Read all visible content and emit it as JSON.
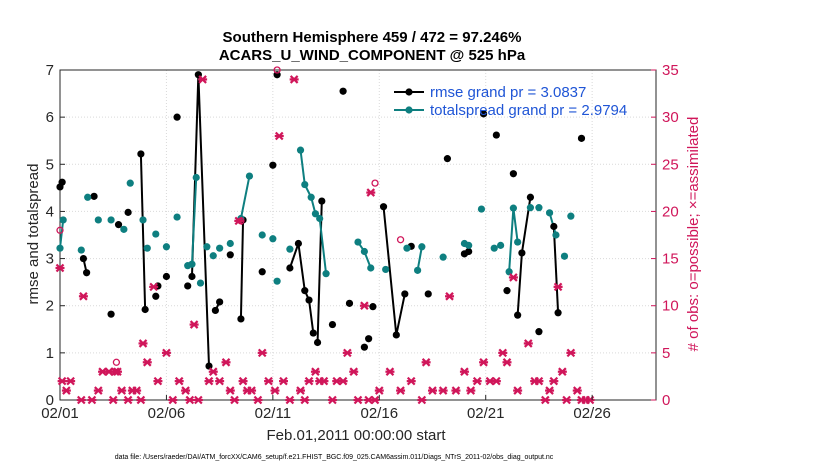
{
  "colors": {
    "rmse": "#000000",
    "totalspread": "#0e7f80",
    "obs": "#d0165a",
    "legend_text": "#1f55d6",
    "axes": "#262626",
    "grid": "#d9d9d9"
  },
  "chart_data": {
    "type": "line",
    "title": "Southern Hemisphere 459 / 472 = 97.246%",
    "subtitle": "ACARS_U_WIND_COMPONENT @ 525 hPa",
    "xlabel": "Feb.01,2011 00:00:00 start",
    "ylabel": "rmse and totalspread",
    "ylabel_right": "# of obs: o=possible; ×=assimilated",
    "ylim": [
      0,
      7
    ],
    "ylim_right": [
      0,
      35
    ],
    "xlim": [
      "02/01",
      "03/01"
    ],
    "xticks": [
      {
        "day": 0,
        "label": "02/01"
      },
      {
        "day": 5,
        "label": "02/06"
      },
      {
        "day": 10,
        "label": "02/11"
      },
      {
        "day": 15,
        "label": "02/16"
      },
      {
        "day": 20,
        "label": "02/21"
      },
      {
        "day": 25,
        "label": "02/26"
      }
    ],
    "yticks": [
      0,
      1,
      2,
      3,
      4,
      5,
      6,
      7
    ],
    "yticks_right": [
      0,
      5,
      10,
      15,
      20,
      25,
      30,
      35
    ],
    "grid": true,
    "legend_position": "top-right",
    "series": [
      {
        "name": "rmse grand pr = 3.0837",
        "key": "rmse",
        "points": [
          [
            0.0,
            4.52
          ],
          [
            0.1,
            4.62
          ],
          [
            1.1,
            3.0
          ],
          [
            1.25,
            2.7
          ],
          [
            1.6,
            4.32
          ],
          [
            2.4,
            1.82
          ],
          [
            2.75,
            3.72
          ],
          [
            3.2,
            3.98
          ],
          [
            3.8,
            5.22
          ],
          [
            4.0,
            1.92
          ],
          [
            4.5,
            2.2
          ],
          [
            4.6,
            2.42
          ],
          [
            5.0,
            2.62
          ],
          [
            5.5,
            6.0
          ],
          [
            6.0,
            2.42
          ],
          [
            6.2,
            2.62
          ],
          [
            6.5,
            6.9
          ],
          [
            7.0,
            0.72
          ],
          [
            7.3,
            1.9
          ],
          [
            7.5,
            2.08
          ],
          [
            8.0,
            3.08
          ],
          [
            8.5,
            1.72
          ],
          [
            8.6,
            3.82
          ],
          [
            9.5,
            2.72
          ],
          [
            10.0,
            4.98
          ],
          [
            10.2,
            6.9
          ],
          [
            10.8,
            2.8
          ],
          [
            11.2,
            3.32
          ],
          [
            11.5,
            2.32
          ],
          [
            11.7,
            2.12
          ],
          [
            11.9,
            1.42
          ],
          [
            12.1,
            1.22
          ],
          [
            12.3,
            4.22
          ],
          [
            12.8,
            1.6
          ],
          [
            13.3,
            6.55
          ],
          [
            13.6,
            2.05
          ],
          [
            14.3,
            1.12
          ],
          [
            14.5,
            1.3
          ],
          [
            14.7,
            1.98
          ],
          [
            15.2,
            4.1
          ],
          [
            15.8,
            1.38
          ],
          [
            16.2,
            2.25
          ],
          [
            16.5,
            3.26
          ],
          [
            17.3,
            2.25
          ],
          [
            18.2,
            5.12
          ],
          [
            19.0,
            3.1
          ],
          [
            19.2,
            3.15
          ],
          [
            19.9,
            6.07
          ],
          [
            20.5,
            5.62
          ],
          [
            21.0,
            2.32
          ],
          [
            21.3,
            4.8
          ],
          [
            21.5,
            1.8
          ],
          [
            21.7,
            3.12
          ],
          [
            22.1,
            4.3
          ],
          [
            22.5,
            1.45
          ],
          [
            23.2,
            3.68
          ],
          [
            23.4,
            1.85
          ],
          [
            24.5,
            5.55
          ]
        ],
        "connected": [
          [
            2,
            3
          ],
          [
            8,
            9
          ],
          [
            15,
            16,
            17
          ],
          [
            18,
            19
          ],
          [
            21,
            22
          ],
          [
            26,
            27,
            28,
            29,
            30
          ],
          [
            31,
            32
          ],
          [
            39,
            40,
            41
          ],
          [
            51,
            52,
            53
          ],
          [
            55,
            56
          ]
        ]
      },
      {
        "name": "totalspread grand pr = 2.9794",
        "key": "totalspread",
        "points": [
          [
            0.0,
            3.22
          ],
          [
            0.15,
            3.82
          ],
          [
            1.0,
            3.18
          ],
          [
            1.3,
            4.3
          ],
          [
            1.8,
            3.82
          ],
          [
            2.4,
            3.82
          ],
          [
            3.0,
            3.62
          ],
          [
            3.3,
            4.6
          ],
          [
            3.9,
            3.82
          ],
          [
            4.1,
            3.22
          ],
          [
            4.5,
            3.52
          ],
          [
            5.0,
            3.25
          ],
          [
            5.5,
            3.88
          ],
          [
            6.0,
            2.85
          ],
          [
            6.2,
            2.88
          ],
          [
            6.4,
            4.72
          ],
          [
            6.6,
            2.48
          ],
          [
            6.9,
            3.25
          ],
          [
            7.2,
            3.06
          ],
          [
            7.5,
            3.22
          ],
          [
            8.0,
            3.32
          ],
          [
            8.5,
            3.85
          ],
          [
            8.9,
            4.75
          ],
          [
            9.5,
            3.5
          ],
          [
            10.0,
            3.42
          ],
          [
            10.2,
            2.52
          ],
          [
            10.8,
            3.2
          ],
          [
            11.3,
            5.3
          ],
          [
            11.5,
            4.57
          ],
          [
            11.8,
            4.3
          ],
          [
            12.0,
            3.95
          ],
          [
            12.2,
            3.85
          ],
          [
            12.5,
            2.68
          ],
          [
            14.0,
            3.35
          ],
          [
            14.3,
            3.15
          ],
          [
            14.6,
            2.8
          ],
          [
            15.3,
            2.77
          ],
          [
            16.3,
            3.22
          ],
          [
            16.8,
            2.75
          ],
          [
            17.0,
            3.25
          ],
          [
            18.0,
            3.03
          ],
          [
            19.0,
            3.32
          ],
          [
            19.2,
            3.28
          ],
          [
            19.8,
            4.05
          ],
          [
            20.4,
            3.22
          ],
          [
            20.7,
            3.28
          ],
          [
            21.1,
            2.72
          ],
          [
            21.3,
            4.07
          ],
          [
            21.5,
            3.35
          ],
          [
            22.1,
            4.08
          ],
          [
            22.5,
            4.08
          ],
          [
            23.0,
            3.97
          ],
          [
            23.3,
            3.5
          ],
          [
            23.7,
            3.05
          ],
          [
            24.0,
            3.9
          ]
        ],
        "connected": [
          [
            0,
            1
          ],
          [
            14,
            15
          ],
          [
            21,
            22
          ],
          [
            27,
            28,
            29,
            30,
            31,
            32
          ],
          [
            33,
            34,
            35
          ],
          [
            38,
            39
          ],
          [
            46,
            47,
            48
          ],
          [
            51,
            52
          ]
        ]
      },
      {
        "name": "# obs possible",
        "key": "obs_possible",
        "axis": "right",
        "points": [
          [
            0.0,
            18.0
          ],
          [
            2.65,
            4.0
          ],
          [
            8.5,
            19.0
          ],
          [
            10.2,
            35.0
          ],
          [
            14.8,
            23.0
          ],
          [
            16.0,
            17.0
          ]
        ]
      },
      {
        "name": "# obs assimilated",
        "key": "obs_assimilated",
        "axis": "right",
        "points": [
          [
            0.0,
            14.0
          ],
          [
            0.1,
            2.0
          ],
          [
            0.3,
            1.0
          ],
          [
            0.5,
            2.0
          ],
          [
            1.0,
            0.0
          ],
          [
            1.1,
            11.0
          ],
          [
            1.5,
            0.0
          ],
          [
            1.8,
            1.0
          ],
          [
            2.0,
            3.0
          ],
          [
            2.3,
            3.0
          ],
          [
            2.5,
            0.0
          ],
          [
            2.6,
            3.0
          ],
          [
            2.7,
            3.0
          ],
          [
            2.9,
            1.0
          ],
          [
            3.2,
            0.0
          ],
          [
            3.4,
            1.0
          ],
          [
            3.6,
            1.0
          ],
          [
            3.8,
            0.0
          ],
          [
            3.9,
            6.0
          ],
          [
            4.1,
            4.0
          ],
          [
            4.4,
            12.0
          ],
          [
            4.6,
            2.0
          ],
          [
            5.0,
            5.0
          ],
          [
            5.3,
            0.0
          ],
          [
            5.6,
            2.0
          ],
          [
            5.9,
            1.0
          ],
          [
            6.1,
            0.0
          ],
          [
            6.3,
            8.0
          ],
          [
            6.5,
            0.0
          ],
          [
            6.7,
            34.0
          ],
          [
            7.0,
            2.0
          ],
          [
            7.2,
            3.0
          ],
          [
            7.5,
            2.0
          ],
          [
            7.8,
            4.0
          ],
          [
            8.0,
            1.0
          ],
          [
            8.2,
            0.0
          ],
          [
            8.4,
            19.0
          ],
          [
            8.6,
            2.0
          ],
          [
            8.8,
            1.0
          ],
          [
            9.0,
            1.0
          ],
          [
            9.3,
            0.0
          ],
          [
            9.5,
            5.0
          ],
          [
            9.8,
            2.0
          ],
          [
            10.1,
            1.0
          ],
          [
            10.3,
            28.0
          ],
          [
            10.5,
            2.0
          ],
          [
            10.8,
            0.0
          ],
          [
            11.0,
            34.0
          ],
          [
            11.3,
            1.0
          ],
          [
            11.5,
            0.0
          ],
          [
            11.7,
            2.0
          ],
          [
            12.0,
            3.0
          ],
          [
            12.2,
            2.0
          ],
          [
            12.4,
            2.0
          ],
          [
            12.8,
            0.0
          ],
          [
            13.0,
            2.0
          ],
          [
            13.3,
            2.0
          ],
          [
            13.5,
            5.0
          ],
          [
            13.8,
            3.0
          ],
          [
            14.0,
            0.0
          ],
          [
            14.3,
            10.0
          ],
          [
            14.5,
            0.0
          ],
          [
            14.6,
            22.0
          ],
          [
            14.8,
            0.0
          ],
          [
            15.0,
            1.0
          ],
          [
            15.5,
            3.0
          ],
          [
            16.0,
            1.0
          ],
          [
            16.5,
            2.0
          ],
          [
            17.0,
            0.0
          ],
          [
            17.2,
            4.0
          ],
          [
            17.5,
            1.0
          ],
          [
            18.0,
            1.0
          ],
          [
            18.3,
            11.0
          ],
          [
            18.6,
            1.0
          ],
          [
            19.0,
            3.0
          ],
          [
            19.3,
            1.0
          ],
          [
            19.6,
            2.0
          ],
          [
            19.9,
            4.0
          ],
          [
            20.2,
            2.0
          ],
          [
            20.5,
            2.0
          ],
          [
            20.8,
            5.0
          ],
          [
            21.0,
            4.0
          ],
          [
            21.3,
            13.0
          ],
          [
            21.5,
            1.0
          ],
          [
            22.0,
            6.0
          ],
          [
            22.3,
            2.0
          ],
          [
            22.5,
            2.0
          ],
          [
            22.8,
            0.0
          ],
          [
            23.0,
            1.0
          ],
          [
            23.2,
            2.0
          ],
          [
            23.4,
            12.0
          ],
          [
            23.6,
            3.0
          ],
          [
            23.8,
            0.0
          ],
          [
            24.0,
            5.0
          ],
          [
            24.3,
            1.0
          ],
          [
            24.5,
            0.0
          ],
          [
            24.7,
            0.0
          ],
          [
            24.9,
            0.0
          ]
        ]
      }
    ]
  },
  "footnote": "data file: /Users/raeder/DAI/ATM_forcXX/CAM6_setup/f.e21.FHIST_BGC.f09_025.CAM6assim.011/Diags_NTrS_2011-02/obs_diag_output.nc"
}
